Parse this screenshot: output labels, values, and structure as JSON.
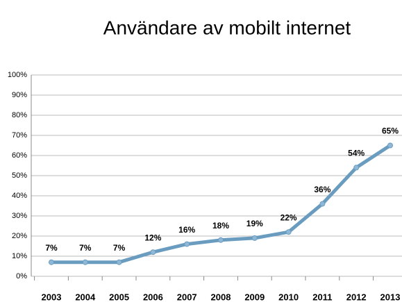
{
  "chart_data": {
    "type": "line",
    "title": "Användare av mobilt internet",
    "categories": [
      "2003",
      "2004",
      "2005",
      "2006",
      "2007",
      "2008",
      "2009",
      "2010",
      "2011",
      "2012",
      "2013"
    ],
    "values": [
      7,
      7,
      7,
      12,
      16,
      18,
      19,
      22,
      36,
      54,
      65
    ],
    "value_labels": [
      "7%",
      "7%",
      "7%",
      "12%",
      "16%",
      "18%",
      "19%",
      "22%",
      "36%",
      "54%",
      "65%"
    ],
    "color": "#6a9cc0",
    "ylim": [
      0,
      100
    ],
    "yticks": [
      {
        "value": 0,
        "label": "0%"
      },
      {
        "value": 10,
        "label": "10%"
      },
      {
        "value": 20,
        "label": "20%"
      },
      {
        "value": 30,
        "label": "30%"
      },
      {
        "value": 40,
        "label": "40%"
      },
      {
        "value": 50,
        "label": "50%"
      },
      {
        "value": 60,
        "label": "60%"
      },
      {
        "value": 70,
        "label": "70%"
      },
      {
        "value": 80,
        "label": "80%"
      },
      {
        "value": 90,
        "label": "90%"
      },
      {
        "value": 100,
        "label": "100%"
      }
    ],
    "grid": true
  }
}
